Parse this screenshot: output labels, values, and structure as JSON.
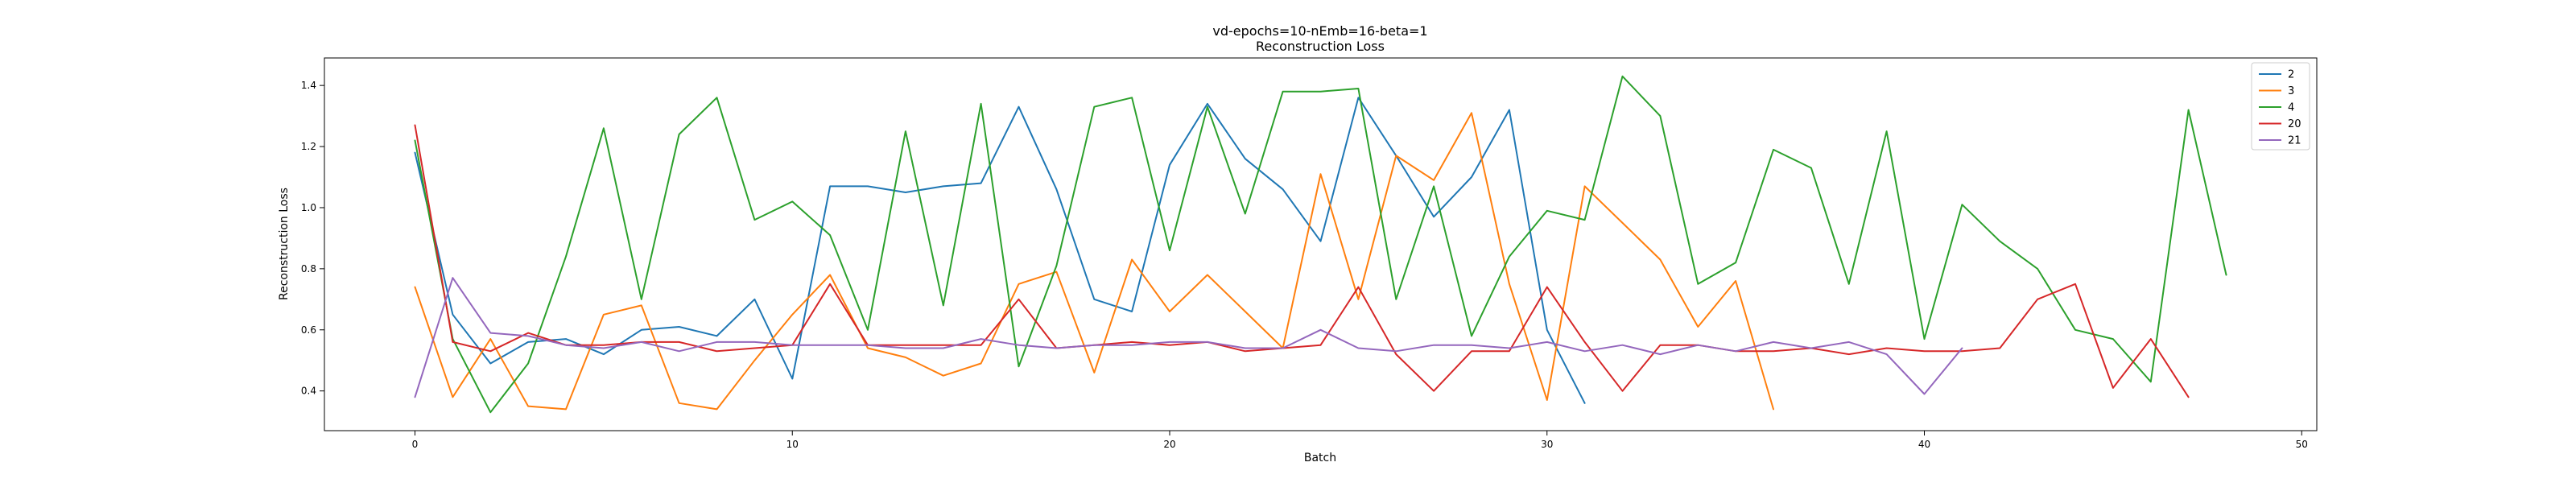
{
  "chart_data": {
    "type": "line",
    "title": "vd-epochs=10-nEmb=16-beta=1",
    "subtitle": "Reconstruction Loss",
    "xlabel": "Batch",
    "ylabel": "Reconstruction Loss",
    "xlim": [
      -2.4,
      50.4
    ],
    "ylim": [
      0.27,
      1.49
    ],
    "xticks": [
      0,
      10,
      20,
      30,
      40,
      50
    ],
    "xtick_labels": [
      "0",
      "10",
      "20",
      "30",
      "40",
      "50"
    ],
    "yticks": [
      0.4,
      0.6,
      0.8,
      1.0,
      1.2,
      1.4
    ],
    "ytick_labels": [
      "0.4",
      "0.6",
      "0.8",
      "1.0",
      "1.2",
      "1.4"
    ],
    "grid": false,
    "legend_position": "top-right",
    "series": [
      {
        "name": "2",
        "color": "#1f77b4",
        "values": [
          1.18,
          0.65,
          0.49,
          0.56,
          0.57,
          0.52,
          0.6,
          0.61,
          0.58,
          0.7,
          0.44,
          1.07,
          1.07,
          1.05,
          1.07,
          1.08,
          1.33,
          1.06,
          0.7,
          0.66,
          1.14,
          1.34,
          1.16,
          1.06,
          0.89,
          1.36,
          1.17,
          0.97,
          1.1,
          1.32,
          0.6,
          0.36
        ]
      },
      {
        "name": "3",
        "color": "#ff7f0e",
        "values": [
          0.74,
          0.38,
          0.57,
          0.35,
          0.34,
          0.65,
          0.68,
          0.36,
          0.34,
          0.5,
          0.65,
          0.78,
          0.54,
          0.51,
          0.45,
          0.49,
          0.75,
          0.79,
          0.46,
          0.83,
          0.66,
          0.78,
          0.66,
          0.54,
          1.11,
          0.7,
          1.17,
          1.09,
          1.31,
          0.75,
          0.37,
          1.07,
          0.95,
          0.83,
          0.61,
          0.76,
          0.34
        ]
      },
      {
        "name": "4",
        "color": "#2ca02c",
        "values": [
          1.22,
          0.57,
          0.33,
          0.49,
          0.84,
          1.26,
          0.7,
          1.24,
          1.36,
          0.96,
          1.02,
          0.91,
          0.6,
          1.25,
          0.68,
          1.34,
          0.48,
          0.81,
          1.33,
          1.36,
          0.86,
          1.33,
          0.98,
          1.38,
          1.38,
          1.39,
          0.7,
          1.07,
          0.58,
          0.84,
          0.99,
          0.96,
          1.43,
          1.3,
          0.75,
          0.82,
          1.19,
          1.13,
          0.75,
          1.25,
          0.57,
          1.01,
          0.89,
          0.8,
          0.6,
          0.57,
          0.43,
          1.32,
          0.78
        ]
      },
      {
        "name": "20",
        "color": "#d62728",
        "values": [
          1.27,
          0.56,
          0.53,
          0.59,
          0.55,
          0.55,
          0.56,
          0.56,
          0.53,
          0.54,
          0.55,
          0.75,
          0.55,
          0.55,
          0.55,
          0.55,
          0.7,
          0.54,
          0.55,
          0.56,
          0.55,
          0.56,
          0.53,
          0.54,
          0.55,
          0.74,
          0.52,
          0.4,
          0.53,
          0.53,
          0.74,
          0.56,
          0.4,
          0.55,
          0.55,
          0.53,
          0.53,
          0.54,
          0.52,
          0.54,
          0.53,
          0.53,
          0.54,
          0.7,
          0.75,
          0.41,
          0.57,
          0.38
        ]
      },
      {
        "name": "21",
        "color": "#9467bd",
        "values": [
          0.38,
          0.77,
          0.59,
          0.58,
          0.55,
          0.54,
          0.56,
          0.53,
          0.56,
          0.56,
          0.55,
          0.55,
          0.55,
          0.54,
          0.54,
          0.57,
          0.55,
          0.54,
          0.55,
          0.55,
          0.56,
          0.56,
          0.54,
          0.54,
          0.6,
          0.54,
          0.53,
          0.55,
          0.55,
          0.54,
          0.56,
          0.53,
          0.55,
          0.52,
          0.55,
          0.53,
          0.56,
          0.54,
          0.56,
          0.52,
          0.39,
          0.54
        ]
      }
    ]
  }
}
